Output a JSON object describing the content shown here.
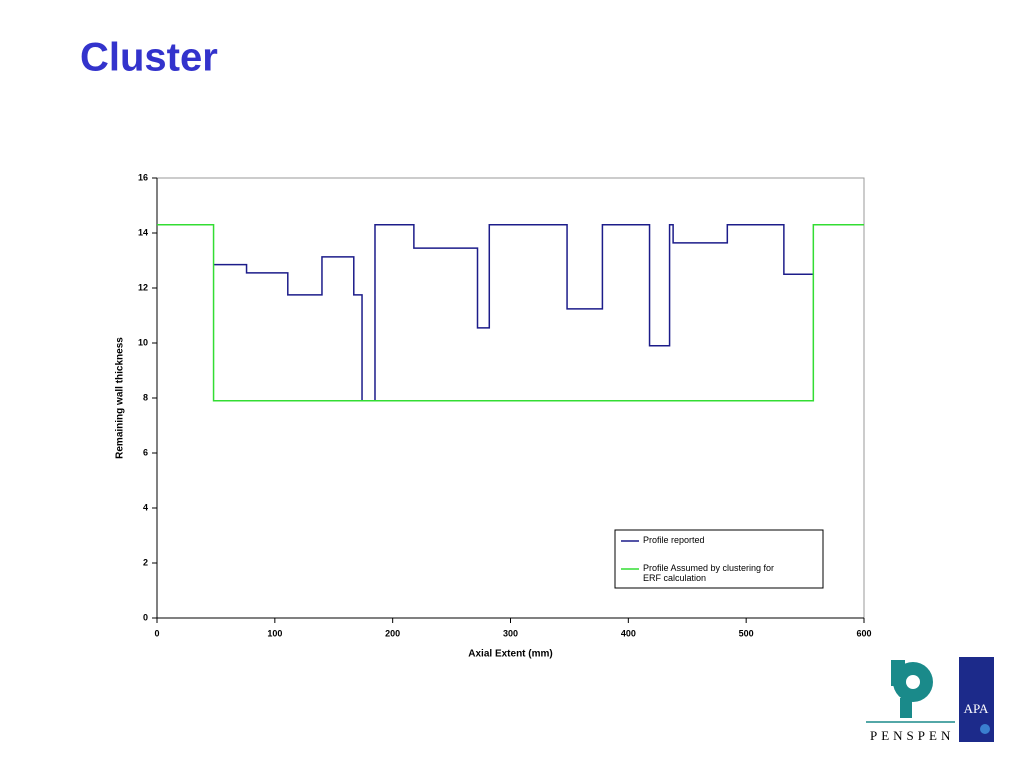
{
  "chart_data": {
    "type": "line",
    "title": "Cluster",
    "xlabel": "Axial Extent (mm)",
    "ylabel": "Remaining wall thickness",
    "xlim": [
      0,
      600
    ],
    "ylim": [
      0,
      16
    ],
    "xticks": [
      0,
      100,
      200,
      300,
      400,
      500,
      600
    ],
    "yticks": [
      0,
      2,
      4,
      6,
      8,
      10,
      12,
      14,
      16
    ],
    "legend": "bottom-right",
    "series": [
      {
        "name": "Profile reported",
        "color": "#1c1c8a",
        "x": [
          48,
          76,
          76,
          111,
          111,
          140,
          140,
          167,
          167,
          174,
          174,
          185,
          185,
          218,
          218,
          272,
          272,
          282,
          282,
          348,
          348,
          378,
          378,
          418,
          418,
          435,
          435,
          438,
          438,
          484,
          484,
          532,
          532,
          557
        ],
        "values": [
          12.85,
          12.85,
          12.55,
          12.55,
          11.75,
          11.75,
          13.13,
          13.13,
          11.75,
          11.75,
          7.9,
          7.9,
          14.3,
          14.3,
          13.45,
          13.45,
          10.55,
          10.55,
          14.3,
          14.3,
          11.24,
          11.24,
          14.3,
          14.3,
          9.9,
          9.9,
          14.3,
          14.3,
          13.64,
          13.64,
          14.3,
          14.3,
          12.5,
          12.5
        ]
      },
      {
        "name": "Profile Assumed by clustering for ERF calculation",
        "color": "#33dd33",
        "x": [
          0,
          48,
          48,
          557,
          557,
          600
        ],
        "values": [
          14.3,
          14.3,
          7.9,
          7.9,
          14.3,
          14.3
        ]
      }
    ]
  },
  "logo": {
    "company": "PENSPEN",
    "partner": "APA"
  }
}
